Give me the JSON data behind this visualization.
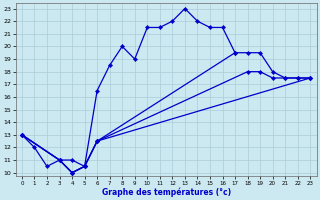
{
  "xlabel": "Graphe des températures (°c)",
  "background_color": "#cce8f0",
  "grid_color": "#aaccd8",
  "line_color": "#0000cc",
  "xlim": [
    -0.5,
    23.5
  ],
  "ylim": [
    9.7,
    23.4
  ],
  "xticks": [
    0,
    1,
    2,
    3,
    4,
    5,
    6,
    7,
    8,
    9,
    10,
    11,
    12,
    13,
    14,
    15,
    16,
    17,
    18,
    19,
    20,
    21,
    22,
    23
  ],
  "yticks": [
    10,
    11,
    12,
    13,
    14,
    15,
    16,
    17,
    18,
    19,
    20,
    21,
    22,
    23
  ],
  "series": [
    {
      "x": [
        0,
        1,
        2,
        3,
        4,
        5,
        6,
        7,
        8,
        9,
        10,
        11,
        12,
        13,
        14,
        15,
        16,
        17
      ],
      "y": [
        13,
        12,
        10.5,
        11,
        10,
        10.5,
        16.5,
        18.5,
        20,
        19,
        21.5,
        21.5,
        22,
        23,
        22,
        21.5,
        21.5,
        19.5
      ]
    },
    {
      "x": [
        0,
        3,
        4,
        5,
        6,
        17,
        18,
        19,
        20,
        21,
        22,
        23
      ],
      "y": [
        13,
        11,
        11,
        10.5,
        12.5,
        19.5,
        19.5,
        19.5,
        18,
        17.5,
        17.5,
        17.5
      ]
    },
    {
      "x": [
        0,
        3,
        4,
        5,
        6,
        18,
        19,
        20,
        21,
        22,
        23
      ],
      "y": [
        13,
        11,
        10,
        10.5,
        12.5,
        18,
        18,
        17.5,
        17.5,
        17.5,
        17.5
      ]
    },
    {
      "x": [
        0,
        3,
        4,
        5,
        6,
        23
      ],
      "y": [
        13,
        11,
        10,
        10.5,
        12.5,
        17.5
      ]
    }
  ]
}
